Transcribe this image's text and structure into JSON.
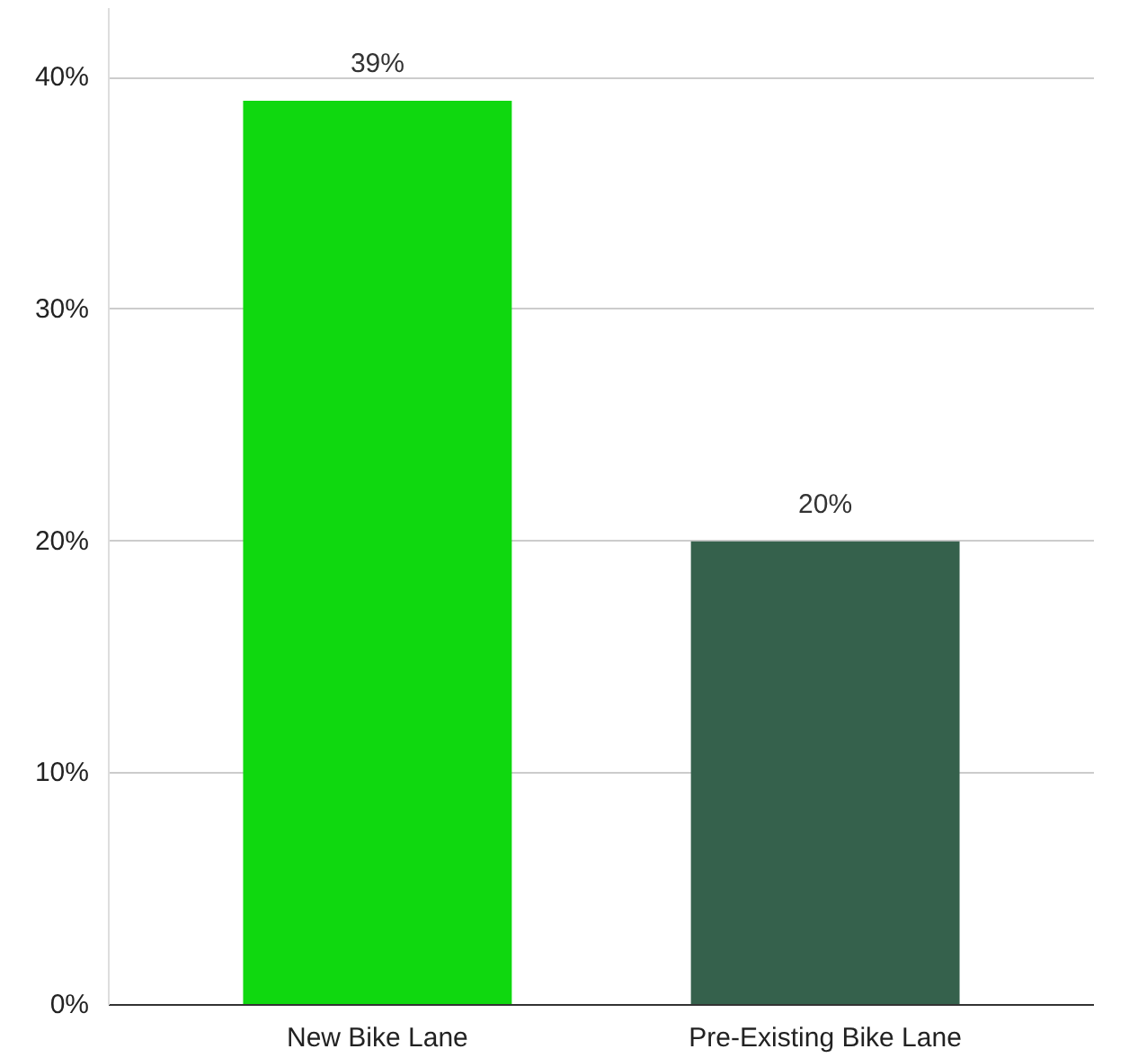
{
  "chart_data": {
    "type": "bar",
    "categories": [
      "New Bike Lane",
      "Pre-Existing Bike Lane"
    ],
    "values": [
      39,
      20
    ],
    "colors": [
      "#0fd80f",
      "#35614c"
    ],
    "value_labels": [
      "39%",
      "20%"
    ],
    "ylim": [
      0,
      43
    ],
    "yticks": [
      {
        "value": 0,
        "label": "0%"
      },
      {
        "value": 10,
        "label": "10%"
      },
      {
        "value": 20,
        "label": "20%"
      },
      {
        "value": 30,
        "label": "30%"
      },
      {
        "value": 40,
        "label": "40%"
      }
    ],
    "grid": "y"
  }
}
